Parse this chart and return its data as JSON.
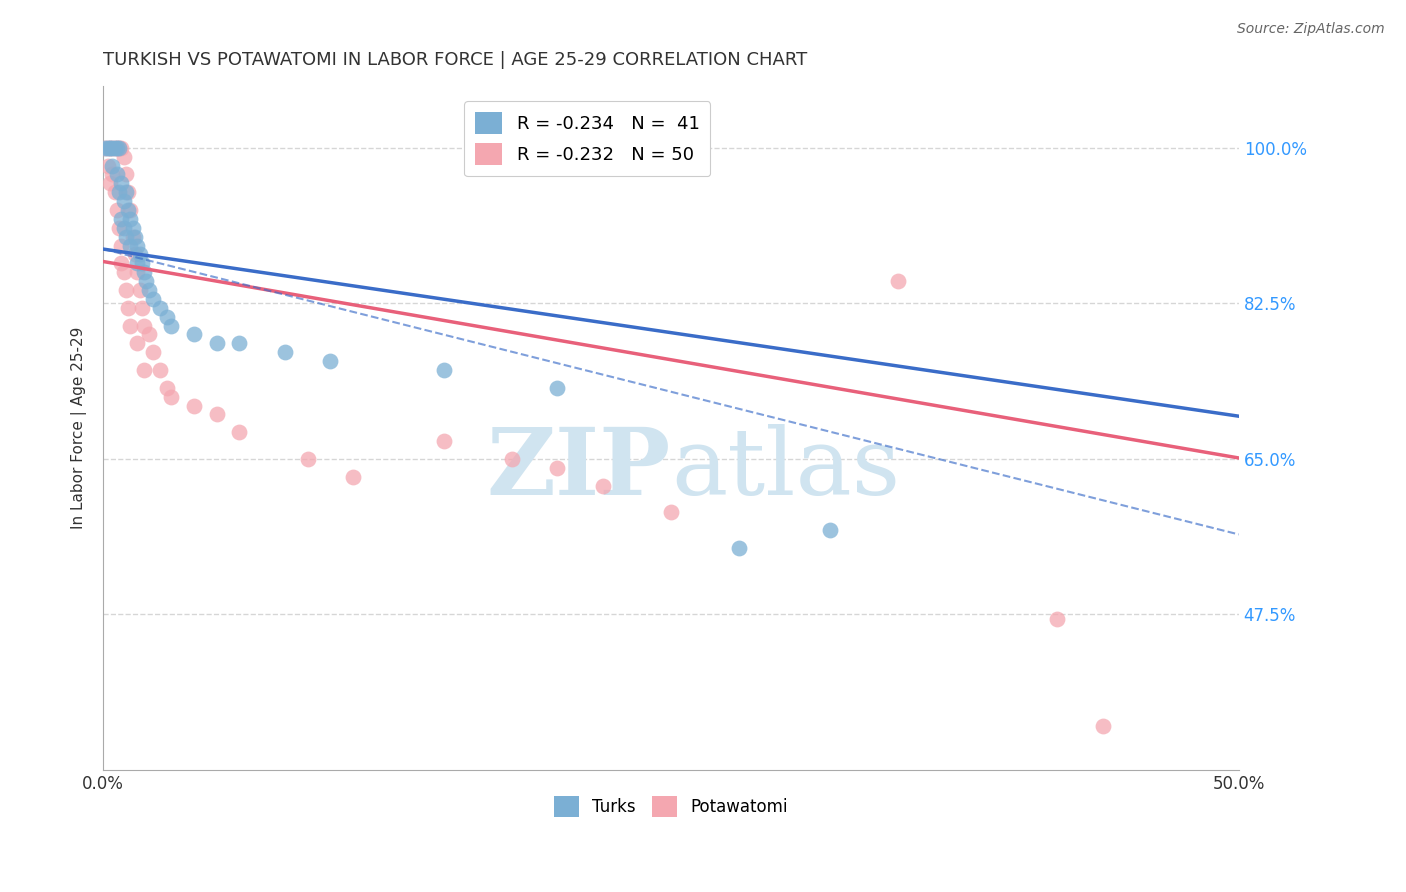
{
  "title": "TURKISH VS POTAWATOMI IN LABOR FORCE | AGE 25-29 CORRELATION CHART",
  "source": "Source: ZipAtlas.com",
  "ylabel": "In Labor Force | Age 25-29",
  "xlim": [
    0.0,
    0.5
  ],
  "ylim": [
    0.3,
    1.07
  ],
  "yticks": [
    0.475,
    0.65,
    0.825,
    1.0
  ],
  "right_yticklabels": [
    "47.5%",
    "65.0%",
    "82.5%",
    "100.0%"
  ],
  "legend_blue_r": "-0.234",
  "legend_blue_n": "41",
  "legend_pink_r": "-0.232",
  "legend_pink_n": "50",
  "blue_color": "#7BAFD4",
  "pink_color": "#F4A7B0",
  "blue_line_color": "#3A6CC8",
  "pink_line_color": "#E8607A",
  "blue_scatter": [
    [
      0.001,
      1.0
    ],
    [
      0.002,
      1.0
    ],
    [
      0.003,
      1.0
    ],
    [
      0.004,
      1.0
    ],
    [
      0.004,
      0.98
    ],
    [
      0.005,
      1.0
    ],
    [
      0.006,
      1.0
    ],
    [
      0.006,
      0.97
    ],
    [
      0.007,
      1.0
    ],
    [
      0.007,
      0.95
    ],
    [
      0.008,
      0.96
    ],
    [
      0.008,
      0.92
    ],
    [
      0.009,
      0.94
    ],
    [
      0.009,
      0.91
    ],
    [
      0.01,
      0.95
    ],
    [
      0.01,
      0.9
    ],
    [
      0.011,
      0.93
    ],
    [
      0.012,
      0.92
    ],
    [
      0.012,
      0.89
    ],
    [
      0.013,
      0.91
    ],
    [
      0.014,
      0.9
    ],
    [
      0.015,
      0.89
    ],
    [
      0.015,
      0.87
    ],
    [
      0.016,
      0.88
    ],
    [
      0.017,
      0.87
    ],
    [
      0.018,
      0.86
    ],
    [
      0.019,
      0.85
    ],
    [
      0.02,
      0.84
    ],
    [
      0.022,
      0.83
    ],
    [
      0.025,
      0.82
    ],
    [
      0.028,
      0.81
    ],
    [
      0.03,
      0.8
    ],
    [
      0.04,
      0.79
    ],
    [
      0.05,
      0.78
    ],
    [
      0.06,
      0.78
    ],
    [
      0.08,
      0.77
    ],
    [
      0.1,
      0.76
    ],
    [
      0.15,
      0.75
    ],
    [
      0.2,
      0.73
    ],
    [
      0.28,
      0.55
    ],
    [
      0.32,
      0.57
    ]
  ],
  "pink_scatter": [
    [
      0.001,
      1.0
    ],
    [
      0.002,
      1.0
    ],
    [
      0.002,
      0.98
    ],
    [
      0.003,
      1.0
    ],
    [
      0.003,
      0.96
    ],
    [
      0.004,
      1.0
    ],
    [
      0.004,
      0.97
    ],
    [
      0.005,
      1.0
    ],
    [
      0.005,
      0.95
    ],
    [
      0.006,
      1.0
    ],
    [
      0.006,
      0.93
    ],
    [
      0.007,
      1.0
    ],
    [
      0.007,
      0.91
    ],
    [
      0.008,
      1.0
    ],
    [
      0.008,
      0.89
    ],
    [
      0.008,
      0.87
    ],
    [
      0.009,
      0.99
    ],
    [
      0.009,
      0.86
    ],
    [
      0.01,
      0.97
    ],
    [
      0.01,
      0.84
    ],
    [
      0.011,
      0.95
    ],
    [
      0.011,
      0.82
    ],
    [
      0.012,
      0.93
    ],
    [
      0.012,
      0.8
    ],
    [
      0.013,
      0.9
    ],
    [
      0.014,
      0.88
    ],
    [
      0.015,
      0.86
    ],
    [
      0.015,
      0.78
    ],
    [
      0.016,
      0.84
    ],
    [
      0.017,
      0.82
    ],
    [
      0.018,
      0.8
    ],
    [
      0.018,
      0.75
    ],
    [
      0.02,
      0.79
    ],
    [
      0.022,
      0.77
    ],
    [
      0.025,
      0.75
    ],
    [
      0.028,
      0.73
    ],
    [
      0.03,
      0.72
    ],
    [
      0.04,
      0.71
    ],
    [
      0.05,
      0.7
    ],
    [
      0.06,
      0.68
    ],
    [
      0.09,
      0.65
    ],
    [
      0.11,
      0.63
    ],
    [
      0.15,
      0.67
    ],
    [
      0.18,
      0.65
    ],
    [
      0.2,
      0.64
    ],
    [
      0.22,
      0.62
    ],
    [
      0.25,
      0.59
    ],
    [
      0.35,
      0.85
    ],
    [
      0.42,
      0.47
    ],
    [
      0.44,
      0.35
    ]
  ],
  "blue_line": {
    "x0": 0.0,
    "y0": 0.886,
    "x1": 0.5,
    "y1": 0.698
  },
  "pink_line": {
    "x0": 0.0,
    "y0": 0.872,
    "x1": 0.5,
    "y1": 0.651
  },
  "blue_dash_line": {
    "x0": 0.0,
    "y0": 0.886,
    "x1": 0.5,
    "y1": 0.565
  },
  "background_color": "#FFFFFF",
  "grid_color": "#CCCCCC",
  "title_color": "#333333",
  "right_axis_color": "#3399FF",
  "watermark_color": "#D0E4F0"
}
